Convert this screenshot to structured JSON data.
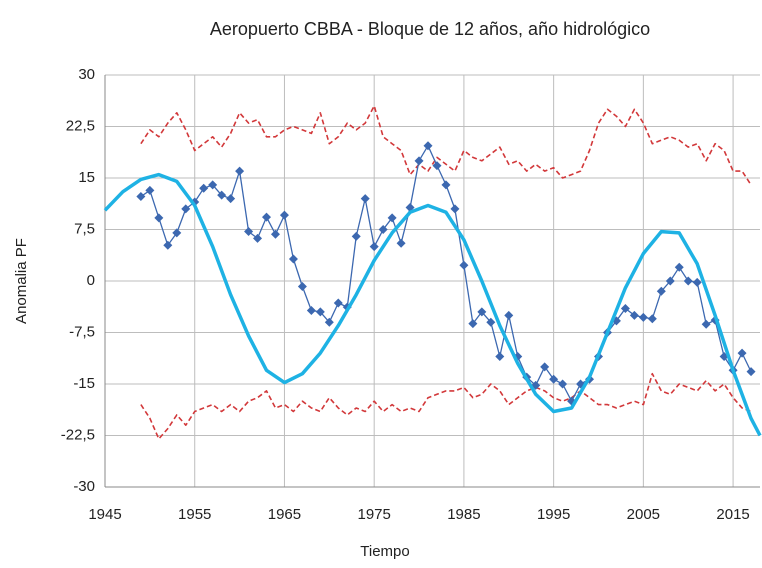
{
  "chart_data": {
    "type": "line",
    "title": "Aeropuerto CBBA - Bloque de 12 años, año hidrológico",
    "xlabel": "Tiempo",
    "ylabel": "Anomalia PF",
    "xlim": [
      1945,
      2018
    ],
    "ylim": [
      -30,
      30
    ],
    "xticks": [
      1945,
      1955,
      1965,
      1975,
      1985,
      1995,
      2005,
      2015
    ],
    "yticks": [
      30,
      {
        "value": 22.5,
        "label": "22,5"
      },
      15,
      {
        "value": 7.5,
        "label": "7,5"
      },
      0,
      {
        "value": -7.5,
        "label": "-7,5"
      },
      -15,
      {
        "value": -22.5,
        "label": "-22,5"
      },
      -30
    ],
    "grid": true,
    "x": [
      1949,
      1950,
      1951,
      1952,
      1953,
      1954,
      1955,
      1956,
      1957,
      1958,
      1959,
      1960,
      1961,
      1962,
      1963,
      1964,
      1965,
      1966,
      1967,
      1968,
      1969,
      1970,
      1971,
      1972,
      1973,
      1974,
      1975,
      1976,
      1977,
      1978,
      1979,
      1980,
      1981,
      1982,
      1983,
      1984,
      1985,
      1986,
      1987,
      1988,
      1989,
      1990,
      1991,
      1992,
      1993,
      1994,
      1995,
      1996,
      1997,
      1998,
      1999,
      2000,
      2001,
      2002,
      2003,
      2004,
      2005,
      2006,
      2007,
      2008,
      2009,
      2010,
      2011,
      2012,
      2013,
      2014,
      2015,
      2016,
      2017
    ],
    "series": [
      {
        "color": "#d2383a",
        "style": "dashed",
        "values": [
          20,
          22,
          21,
          23,
          24.5,
          22,
          19,
          20,
          21,
          19.5,
          21.5,
          24.5,
          23,
          23.5,
          21,
          21,
          22,
          22.5,
          22,
          21.5,
          24.5,
          20,
          21,
          23,
          22,
          23,
          25.5,
          21,
          20,
          19,
          15.5,
          17,
          16,
          18,
          17,
          16,
          19,
          18,
          17.5,
          18.5,
          19.5,
          17,
          17.5,
          16,
          17,
          16,
          16.5,
          15,
          15.5,
          16,
          19,
          23,
          25,
          24,
          22.5,
          25,
          23,
          20,
          20.5,
          21,
          20.5,
          19.5,
          20,
          17.5,
          20,
          19,
          16,
          16,
          14
        ]
      },
      {
        "color": "#d2383a",
        "style": "dashed",
        "values": [
          -18,
          -20,
          -23,
          -21.5,
          -19.5,
          -21,
          -19,
          -18.5,
          -18,
          -19,
          -18,
          -19,
          -17.5,
          -17,
          -16,
          -18.5,
          -18,
          -19,
          -17.5,
          -18.5,
          -19,
          -17,
          -18.5,
          -19.5,
          -18.5,
          -19,
          -17.5,
          -19,
          -18,
          -19,
          -18.5,
          -19,
          -17,
          -16.5,
          -16,
          -16,
          -15.5,
          -17,
          -16.5,
          -15,
          -16,
          -18,
          -17,
          -16,
          -15.5,
          -16,
          -17,
          -17.5,
          -17,
          -16,
          -17,
          -18,
          -18,
          -18.5,
          -18,
          -17.5,
          -18,
          -13.5,
          -16,
          -16.5,
          -15,
          -15.5,
          -16,
          -14.5,
          -16,
          -15,
          -17,
          -18.5,
          -19
        ]
      },
      {
        "color": "#3c68b0",
        "style": "markers",
        "values": [
          12.3,
          13.2,
          9.2,
          5.2,
          7,
          10.5,
          11.5,
          13.5,
          14,
          12.5,
          12,
          16,
          7.2,
          6.2,
          9.3,
          6.8,
          9.6,
          3.2,
          -0.8,
          -4.3,
          -4.5,
          -6,
          -3.2,
          -3.8,
          6.5,
          12,
          5,
          7.5,
          9.2,
          5.5,
          10.7,
          17.5,
          19.7,
          16.8,
          14,
          10.5,
          2.3,
          -6.2,
          -4.5,
          -6,
          -11,
          -5,
          -11,
          -14,
          -15.2,
          -12.5,
          -14.3,
          -15,
          -17.5,
          -15,
          -14.3,
          -11,
          -7.5,
          -5.8,
          -4,
          -5,
          -5.3,
          -5.5,
          -1.5,
          0,
          2,
          0,
          -0.2,
          -6.3,
          -5.7,
          -11,
          -13,
          -10.5,
          -13.2
        ]
      },
      {
        "color": "#1eb2e4",
        "style": "thick",
        "x": [
          1945,
          1947,
          1949,
          1951,
          1953,
          1955,
          1957,
          1959,
          1961,
          1963,
          1965,
          1967,
          1969,
          1971,
          1973,
          1975,
          1977,
          1979,
          1981,
          1983,
          1985,
          1987,
          1989,
          1991,
          1993,
          1995,
          1997,
          1999,
          2001,
          2003,
          2005,
          2007,
          2009,
          2011,
          2013,
          2015,
          2017,
          2018
        ],
        "values": [
          10.3,
          13,
          14.8,
          15.5,
          14.5,
          11,
          5,
          -2,
          -8,
          -13,
          -14.8,
          -13.5,
          -10.5,
          -6.5,
          -2,
          3,
          7,
          10,
          11,
          10,
          6,
          0,
          -6.5,
          -12,
          -16.5,
          -19,
          -18.5,
          -14,
          -7.5,
          -1,
          4,
          7.2,
          7,
          2.5,
          -5,
          -13,
          -20,
          -22.5
        ]
      }
    ]
  }
}
